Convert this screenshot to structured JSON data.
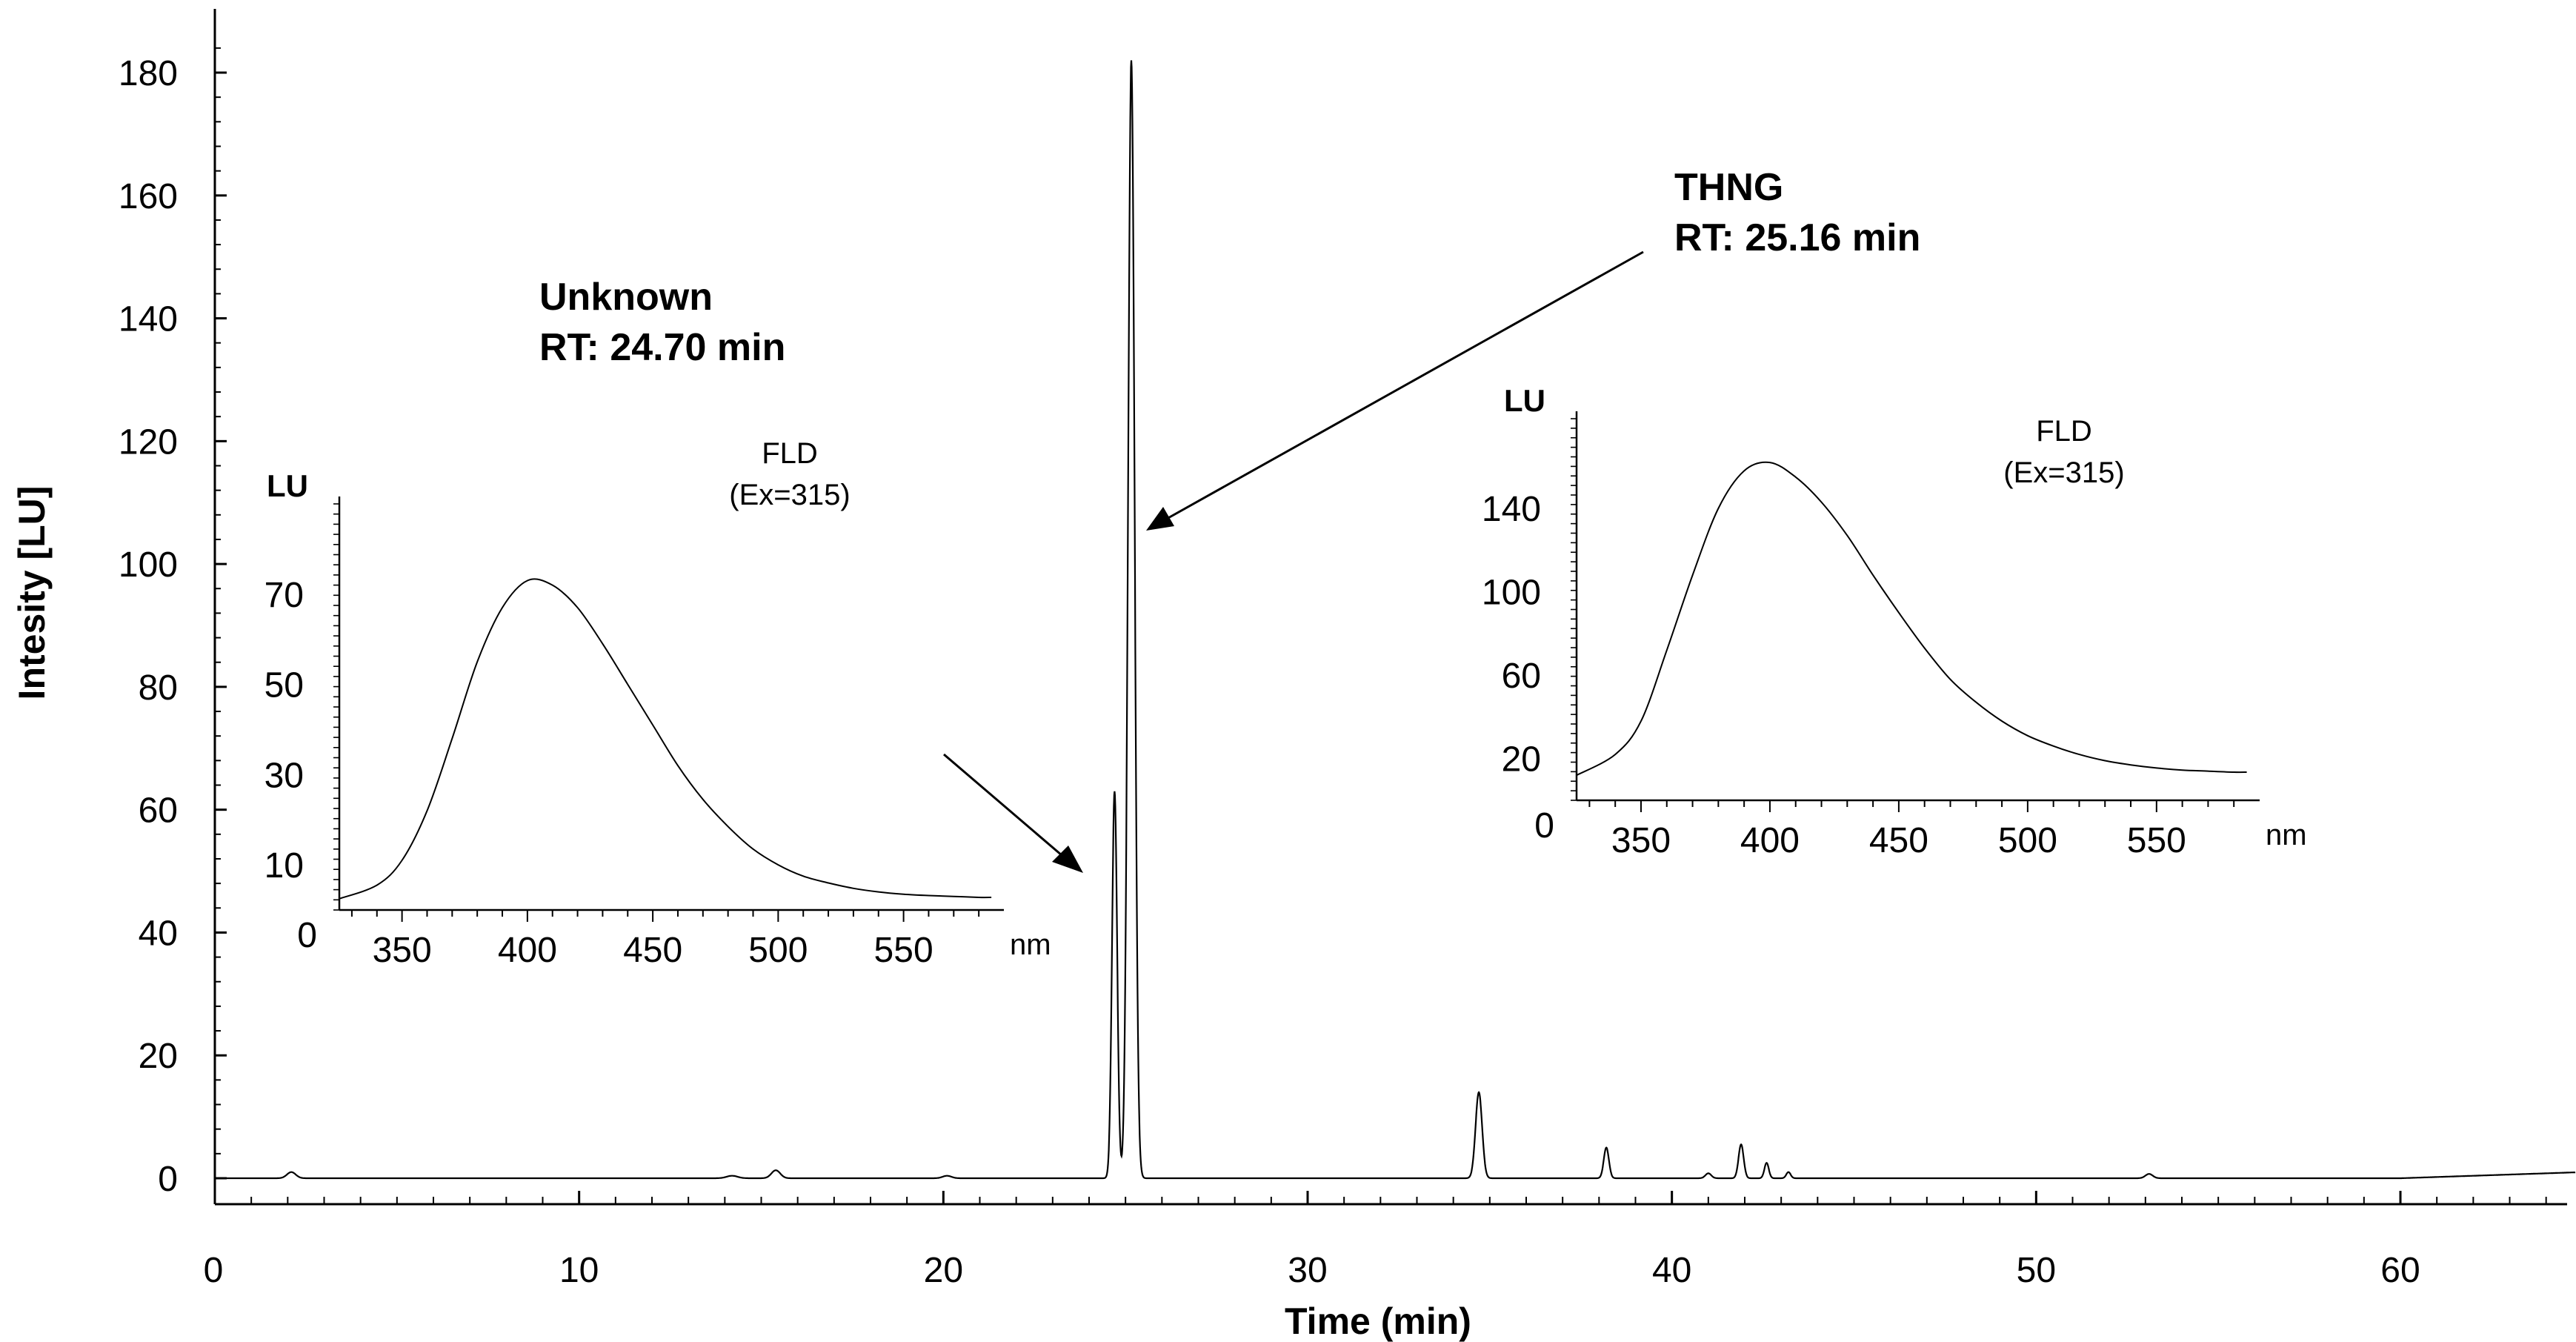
{
  "chart_data": [
    {
      "type": "line",
      "xlabel": "Time (min)",
      "ylabel": "Intesity [LU]",
      "xlim": [
        0,
        65
      ],
      "ylim": [
        -4,
        188
      ],
      "x_ticks": [
        0,
        10,
        20,
        30,
        40,
        50,
        60
      ],
      "y_ticks": [
        0,
        20,
        40,
        60,
        80,
        100,
        120,
        140,
        160,
        180
      ],
      "grid": false,
      "baseline": 0,
      "peaks": [
        {
          "x": 2.1,
          "height": 1.0,
          "width": 0.12
        },
        {
          "x": 14.2,
          "height": 0.4,
          "width": 0.15
        },
        {
          "x": 15.4,
          "height": 1.3,
          "width": 0.12
        },
        {
          "x": 20.1,
          "height": 0.4,
          "width": 0.12
        },
        {
          "x": 24.7,
          "height": 63,
          "width": 0.07
        },
        {
          "x": 25.16,
          "height": 182,
          "width": 0.09
        },
        {
          "x": 34.7,
          "height": 14,
          "width": 0.09
        },
        {
          "x": 38.2,
          "height": 5,
          "width": 0.07
        },
        {
          "x": 41.0,
          "height": 0.8,
          "width": 0.08
        },
        {
          "x": 41.9,
          "height": 5.5,
          "width": 0.07
        },
        {
          "x": 42.6,
          "height": 2.5,
          "width": 0.06
        },
        {
          "x": 43.2,
          "height": 1.0,
          "width": 0.06
        },
        {
          "x": 53.1,
          "height": 0.7,
          "width": 0.1
        }
      ],
      "drift": [
        {
          "x": 0,
          "y": 0
        },
        {
          "x": 60,
          "y": 0
        },
        {
          "x": 65,
          "y": 1
        }
      ],
      "annotations": [
        {
          "lines": [
            "Unknown",
            "RT: 24.70 min"
          ],
          "target_x": 24.7
        },
        {
          "lines": [
            "THNG",
            "RT: 25.16 min"
          ],
          "target_x": 25.16
        }
      ]
    },
    {
      "type": "line",
      "name": "inset-unknown",
      "title_lines": [
        "FLD",
        "(Ex=315)"
      ],
      "ylabel": "LU",
      "xlabel": "nm",
      "xlim": [
        325,
        590
      ],
      "ylim": [
        0,
        90
      ],
      "x_ticks": [
        350,
        400,
        450,
        500,
        550
      ],
      "y_ticks": [
        10,
        30,
        50,
        70
      ],
      "y_zero_label": "0",
      "x": [
        325,
        340,
        350,
        360,
        370,
        380,
        390,
        400,
        410,
        420,
        430,
        440,
        450,
        460,
        470,
        480,
        490,
        500,
        510,
        520,
        530,
        540,
        550,
        560,
        570,
        580,
        585
      ],
      "y": [
        2.5,
        5.5,
        11,
        22,
        38,
        55,
        67,
        73,
        72,
        67,
        59,
        50,
        41,
        32,
        24.5,
        18.5,
        13.5,
        10,
        7.5,
        6,
        4.8,
        4,
        3.5,
        3.2,
        3,
        2.8,
        2.8
      ]
    },
    {
      "type": "line",
      "name": "inset-thng",
      "title_lines": [
        "FLD",
        "(Ex=315)"
      ],
      "ylabel": "LU",
      "xlabel": "nm",
      "xlim": [
        325,
        590
      ],
      "ylim": [
        0,
        183
      ],
      "x_ticks": [
        350,
        400,
        450,
        500,
        550
      ],
      "y_ticks": [
        20,
        60,
        100,
        140
      ],
      "y_zero_label": "0",
      "x": [
        325,
        340,
        350,
        360,
        370,
        380,
        390,
        400,
        410,
        420,
        430,
        440,
        450,
        460,
        470,
        480,
        490,
        500,
        510,
        520,
        530,
        540,
        550,
        560,
        570,
        580,
        585
      ],
      "y": [
        12,
        22,
        38,
        72,
        108,
        140,
        158,
        162,
        155,
        143,
        127,
        108,
        90,
        73,
        58,
        47,
        38,
        31,
        26,
        22,
        19,
        17,
        15.5,
        14.5,
        14,
        13.5,
        13.5
      ]
    }
  ]
}
